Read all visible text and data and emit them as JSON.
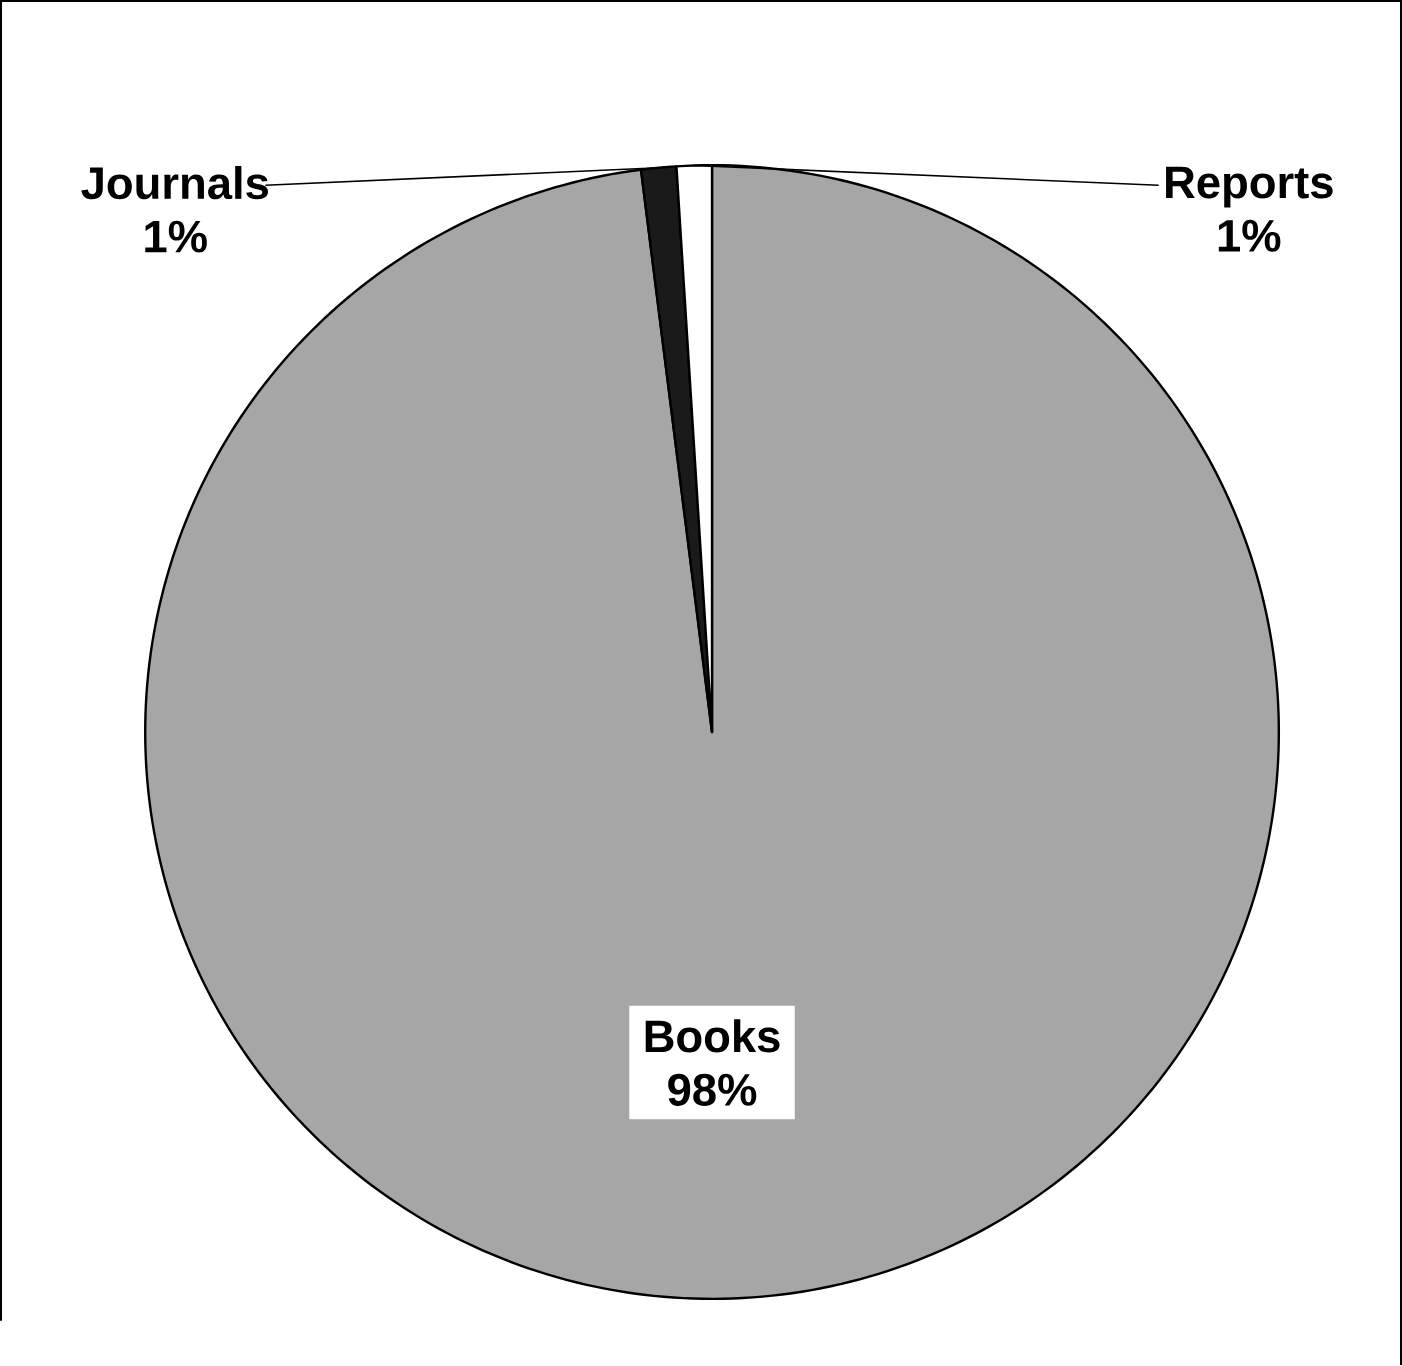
{
  "chart_data": {
    "type": "pie",
    "categories": [
      "Books",
      "Journals",
      "Reports"
    ],
    "values": [
      98,
      1,
      1
    ],
    "value_labels": [
      "98%",
      "1%",
      "1%"
    ],
    "colors": [
      "#a6a6a6",
      "#1a1a1a",
      "#ffffff"
    ]
  }
}
